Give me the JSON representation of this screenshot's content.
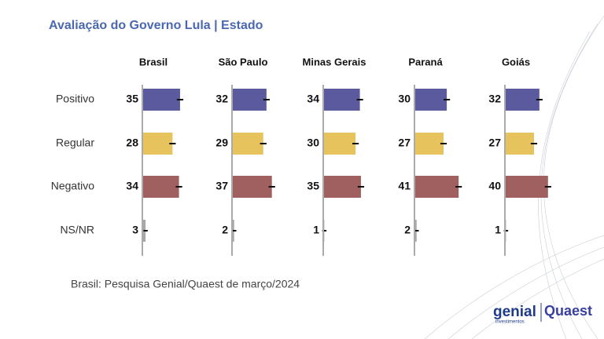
{
  "chart_data": {
    "type": "bar",
    "title": "Avaliação do Governo Lula | Estado",
    "categories": [
      "Positivo",
      "Regular",
      "Negativo",
      "NS/NR"
    ],
    "colors": [
      "#5b5a9e",
      "#e6c35c",
      "#a0605f",
      "#a8a8a8"
    ],
    "series": [
      {
        "name": "Brasil",
        "values": [
          35,
          28,
          34,
          3
        ],
        "errors": [
          3,
          3,
          3,
          2
        ]
      },
      {
        "name": "São Paulo",
        "values": [
          32,
          29,
          37,
          2
        ],
        "errors": [
          3,
          3,
          3,
          2
        ]
      },
      {
        "name": "Minas Gerais",
        "values": [
          34,
          30,
          35,
          1
        ],
        "errors": [
          3,
          3,
          3,
          2
        ]
      },
      {
        "name": "Paraná",
        "values": [
          30,
          27,
          41,
          2
        ],
        "errors": [
          3,
          3,
          3,
          2
        ]
      },
      {
        "name": "Goiás",
        "values": [
          32,
          27,
          40,
          1
        ],
        "errors": [
          3,
          3,
          3,
          2
        ]
      }
    ],
    "note": "Brasil: Pesquisa Genial/Quaest de março/2024"
  },
  "logo": {
    "brand1": "genial",
    "brand1_sub": "investimentos",
    "brand2": "Quaest"
  }
}
